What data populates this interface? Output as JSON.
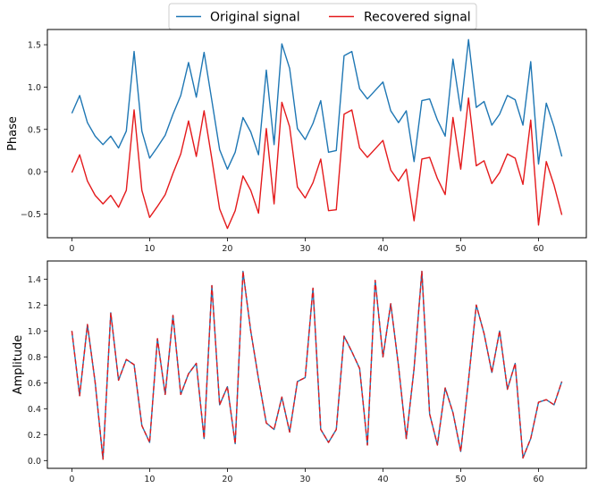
{
  "legend": [
    {
      "label": "Original signal",
      "color": "#1f77b4",
      "dash": "solid"
    },
    {
      "label": "Recovered signal",
      "color": "#e41a1c",
      "dash": "solid"
    }
  ],
  "chart_data": [
    {
      "type": "line",
      "panel": "top",
      "xlabel": "",
      "ylabel": "Phase",
      "xlim": [
        -3.15,
        66.15
      ],
      "ylim": [
        -0.78,
        1.68
      ],
      "xticks": [
        0,
        10,
        20,
        30,
        40,
        50,
        60
      ],
      "yticks": [
        -0.5,
        0.0,
        0.5,
        1.0,
        1.5
      ],
      "ytick_labels": [
        "−0.5",
        "0.0",
        "0.5",
        "1.0",
        "1.5"
      ],
      "grid": false,
      "series": [
        {
          "name": "Original signal",
          "color": "#1f77b4",
          "dash": "solid",
          "values": [
            0.69,
            0.9,
            0.58,
            0.42,
            0.32,
            0.42,
            0.28,
            0.48,
            1.42,
            0.48,
            0.16,
            0.29,
            0.43,
            0.68,
            0.9,
            1.29,
            0.88,
            1.41,
            0.84,
            0.26,
            0.03,
            0.23,
            0.64,
            0.47,
            0.2,
            1.2,
            0.32,
            1.51,
            1.22,
            0.51,
            0.38,
            0.57,
            0.84,
            0.23,
            0.25,
            1.37,
            1.42,
            0.98,
            0.86,
            0.96,
            1.06,
            0.72,
            0.58,
            0.72,
            0.12,
            0.84,
            0.86,
            0.61,
            0.42,
            1.33,
            0.72,
            1.56,
            0.76,
            0.83,
            0.55,
            0.68,
            0.9,
            0.85,
            0.55,
            1.3,
            0.09,
            0.81,
            0.53,
            0.18
          ]
        },
        {
          "name": "Recovered signal",
          "color": "#e41a1c",
          "dash": "solid",
          "values": [
            -0.01,
            0.2,
            -0.11,
            -0.28,
            -0.38,
            -0.28,
            -0.42,
            -0.22,
            0.73,
            -0.22,
            -0.54,
            -0.41,
            -0.27,
            -0.02,
            0.21,
            0.6,
            0.18,
            0.72,
            0.15,
            -0.44,
            -0.67,
            -0.46,
            -0.05,
            -0.22,
            -0.49,
            0.51,
            -0.38,
            0.82,
            0.53,
            -0.18,
            -0.31,
            -0.13,
            0.15,
            -0.46,
            -0.45,
            0.68,
            0.73,
            0.28,
            0.17,
            0.27,
            0.37,
            0.02,
            -0.11,
            0.03,
            -0.58,
            0.15,
            0.17,
            -0.08,
            -0.27,
            0.64,
            0.03,
            0.87,
            0.07,
            0.13,
            -0.14,
            -0.01,
            0.21,
            0.16,
            -0.15,
            0.61,
            -0.63,
            0.12,
            -0.16,
            -0.51
          ]
        }
      ]
    },
    {
      "type": "line",
      "panel": "bottom",
      "xlabel": "",
      "ylabel": "Amplitude",
      "xlim": [
        -3.15,
        66.15
      ],
      "ylim": [
        -0.06,
        1.54
      ],
      "xticks": [
        0,
        10,
        20,
        30,
        40,
        50,
        60
      ],
      "yticks": [
        0.0,
        0.2,
        0.4,
        0.6,
        0.8,
        1.0,
        1.2,
        1.4
      ],
      "ytick_labels": [
        "0.0",
        "0.2",
        "0.4",
        "0.6",
        "0.8",
        "1.0",
        "1.2",
        "1.4"
      ],
      "grid": false,
      "series": [
        {
          "name": "Original signal",
          "color": "#1f77b4",
          "dash": "solid",
          "values": [
            1.0,
            0.5,
            1.05,
            0.6,
            0.01,
            1.14,
            0.62,
            0.78,
            0.74,
            0.27,
            0.14,
            0.94,
            0.51,
            1.12,
            0.51,
            0.67,
            0.75,
            0.17,
            1.35,
            0.43,
            0.57,
            0.13,
            1.46,
            1.0,
            0.63,
            0.29,
            0.24,
            0.49,
            0.22,
            0.61,
            0.64,
            1.33,
            0.24,
            0.14,
            0.24,
            0.96,
            0.84,
            0.71,
            0.12,
            1.39,
            0.8,
            1.21,
            0.73,
            0.17,
            0.71,
            1.46,
            0.36,
            0.12,
            0.56,
            0.37,
            0.07,
            0.62,
            1.2,
            0.98,
            0.68,
            1.0,
            0.55,
            0.75,
            0.02,
            0.17,
            0.45,
            0.47,
            0.43,
            0.61
          ]
        },
        {
          "name": "Recovered signal",
          "color": "#e41a1c",
          "dash": "dashed",
          "values": [
            1.0,
            0.5,
            1.05,
            0.6,
            0.01,
            1.14,
            0.62,
            0.78,
            0.74,
            0.27,
            0.14,
            0.94,
            0.51,
            1.12,
            0.51,
            0.67,
            0.75,
            0.17,
            1.35,
            0.43,
            0.57,
            0.13,
            1.46,
            1.0,
            0.63,
            0.29,
            0.24,
            0.49,
            0.22,
            0.61,
            0.64,
            1.33,
            0.24,
            0.14,
            0.24,
            0.96,
            0.84,
            0.71,
            0.12,
            1.39,
            0.8,
            1.21,
            0.73,
            0.17,
            0.71,
            1.46,
            0.36,
            0.12,
            0.56,
            0.37,
            0.07,
            0.62,
            1.2,
            0.98,
            0.68,
            1.0,
            0.55,
            0.75,
            0.02,
            0.17,
            0.45,
            0.47,
            0.43,
            0.61
          ]
        }
      ]
    }
  ]
}
